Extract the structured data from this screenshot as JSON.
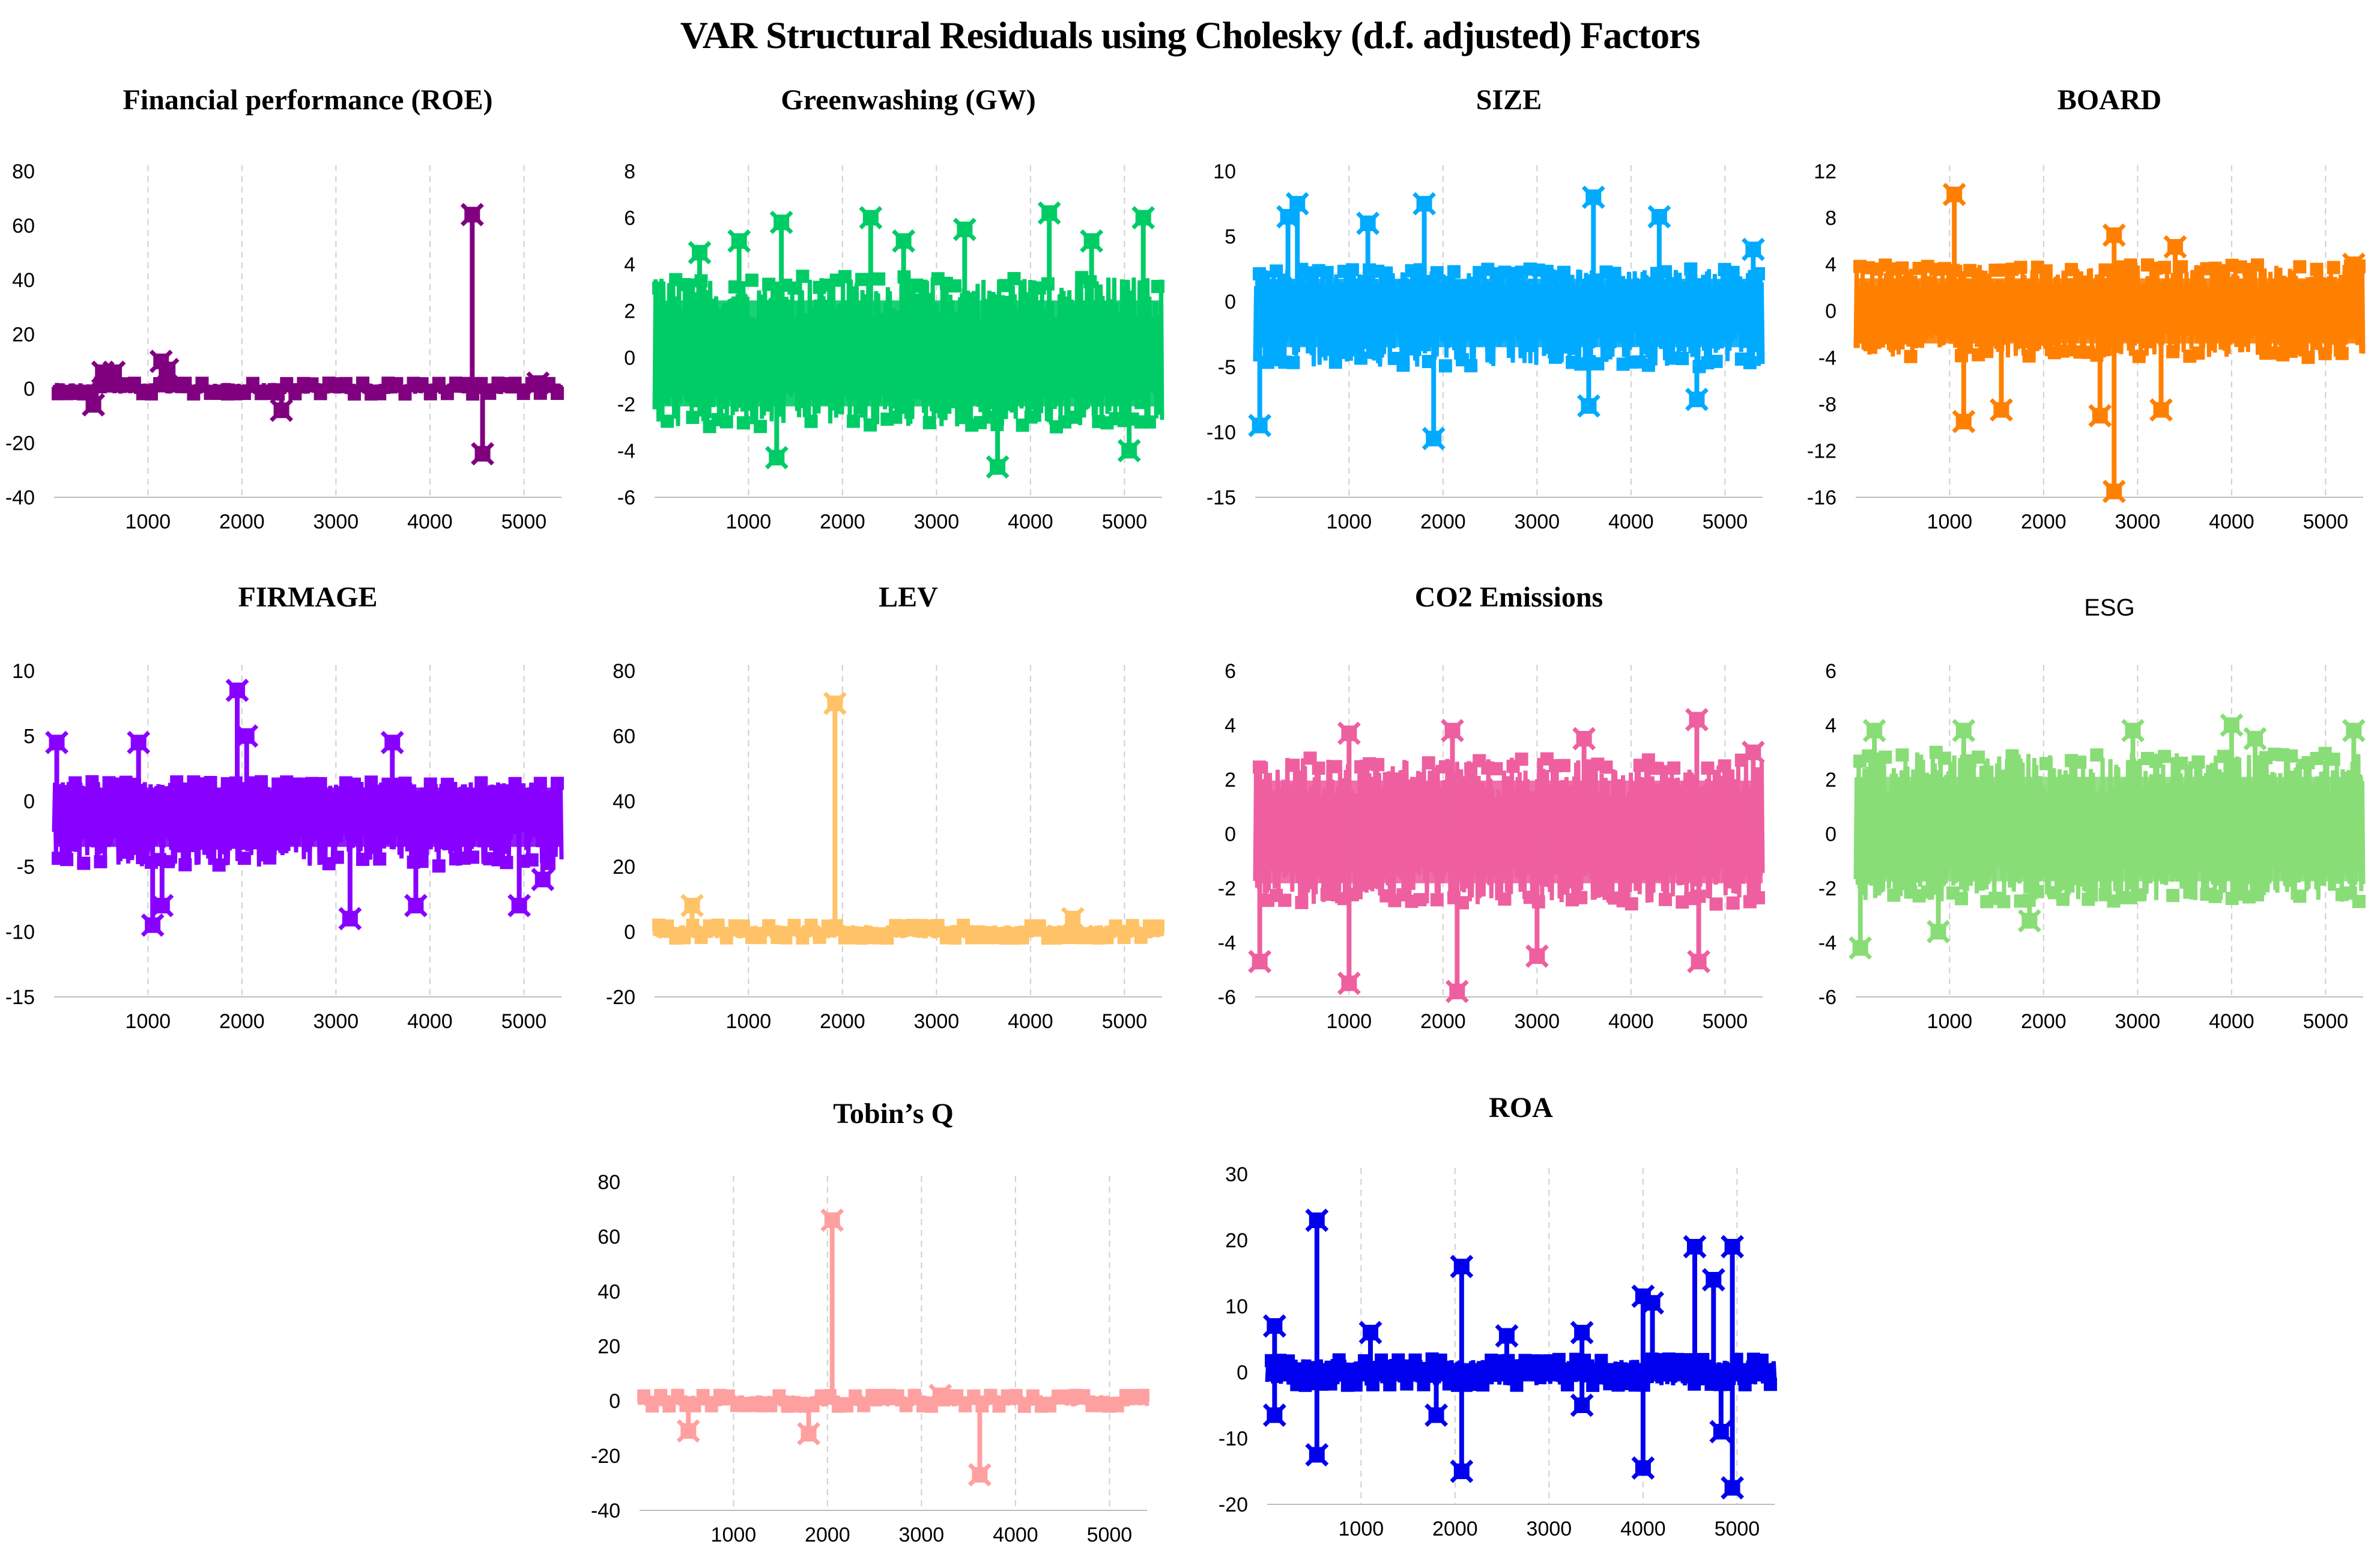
{
  "figure": {
    "title": "VAR Structural Residuals using Cholesky (d.f. adjusted) Factors"
  },
  "chart_data": [
    {
      "type": "line",
      "title": "Financial performance (ROE)",
      "color": "#800080",
      "xlim": [
        1,
        5400
      ],
      "xticks": [
        1000,
        2000,
        3000,
        4000,
        5000
      ],
      "ylim": [
        -40,
        80
      ],
      "yticks": [
        -40,
        -20,
        0,
        20,
        40,
        60,
        80
      ],
      "band": [
        -2,
        2
      ],
      "spikes": [
        {
          "x": 420,
          "y": -6
        },
        {
          "x": 520,
          "y": 6
        },
        {
          "x": 640,
          "y": 6
        },
        {
          "x": 1140,
          "y": 10
        },
        {
          "x": 1210,
          "y": 7
        },
        {
          "x": 2420,
          "y": -8
        },
        {
          "x": 4450,
          "y": 64
        },
        {
          "x": 4560,
          "y": -24
        },
        {
          "x": 5150,
          "y": 2
        }
      ]
    },
    {
      "type": "line",
      "title": "Greenwashing (GW)",
      "color": "#00CC66",
      "xlim": [
        1,
        5400
      ],
      "xticks": [
        1000,
        2000,
        3000,
        4000,
        5000
      ],
      "ylim": [
        -6,
        8
      ],
      "yticks": [
        -6,
        -4,
        -2,
        0,
        2,
        4,
        6,
        8
      ],
      "band": [
        -3,
        3.5
      ],
      "spikes": [
        {
          "x": 480,
          "y": 4.5
        },
        {
          "x": 900,
          "y": 5
        },
        {
          "x": 1350,
          "y": 5.8
        },
        {
          "x": 1300,
          "y": -4.3
        },
        {
          "x": 2300,
          "y": 6
        },
        {
          "x": 2650,
          "y": 5
        },
        {
          "x": 3300,
          "y": 5.5
        },
        {
          "x": 3650,
          "y": -4.7
        },
        {
          "x": 4200,
          "y": 6.2
        },
        {
          "x": 4650,
          "y": 5
        },
        {
          "x": 5200,
          "y": 6
        },
        {
          "x": 5050,
          "y": -4
        }
      ]
    },
    {
      "type": "line",
      "title": "SIZE",
      "color": "#00AAFF",
      "xlim": [
        1,
        5400
      ],
      "xticks": [
        1000,
        2000,
        3000,
        4000,
        5000
      ],
      "ylim": [
        -15,
        10
      ],
      "yticks": [
        -15,
        -10,
        -5,
        0,
        5,
        10
      ],
      "band": [
        -5,
        2.5
      ],
      "spikes": [
        {
          "x": 50,
          "y": -9.5
        },
        {
          "x": 350,
          "y": 6.5
        },
        {
          "x": 450,
          "y": 7.5
        },
        {
          "x": 1200,
          "y": 6
        },
        {
          "x": 1800,
          "y": 7.5
        },
        {
          "x": 1900,
          "y": -10.5
        },
        {
          "x": 3550,
          "y": -8
        },
        {
          "x": 3600,
          "y": 8
        },
        {
          "x": 4300,
          "y": 6.5
        },
        {
          "x": 4700,
          "y": -7.5
        },
        {
          "x": 5300,
          "y": 4
        }
      ]
    },
    {
      "type": "line",
      "title": "BOARD",
      "color": "#FF8000",
      "xlim": [
        1,
        5400
      ],
      "xticks": [
        1000,
        2000,
        3000,
        4000,
        5000
      ],
      "ylim": [
        -16,
        12
      ],
      "yticks": [
        -16,
        -12,
        -8,
        -4,
        0,
        4,
        8,
        12
      ],
      "band": [
        -4,
        4
      ],
      "spikes": [
        {
          "x": 1050,
          "y": 10
        },
        {
          "x": 1150,
          "y": -9.5
        },
        {
          "x": 1550,
          "y": -8.5
        },
        {
          "x": 2600,
          "y": -9
        },
        {
          "x": 2750,
          "y": 6.5
        },
        {
          "x": 2750,
          "y": -15.5
        },
        {
          "x": 3250,
          "y": -8.5
        },
        {
          "x": 3400,
          "y": 5.5
        },
        {
          "x": 5300,
          "y": 4
        }
      ]
    },
    {
      "type": "line",
      "title": "FIRMAGE",
      "color": "#8800FF",
      "xlim": [
        1,
        5400
      ],
      "xticks": [
        1000,
        2000,
        3000,
        4000,
        5000
      ],
      "ylim": [
        -15,
        10
      ],
      "yticks": [
        -15,
        -10,
        -5,
        0,
        5,
        10
      ],
      "band": [
        -5,
        1.5
      ],
      "spikes": [
        {
          "x": 30,
          "y": 4.5
        },
        {
          "x": 900,
          "y": 4.5
        },
        {
          "x": 1050,
          "y": -9.5
        },
        {
          "x": 1150,
          "y": -8
        },
        {
          "x": 1950,
          "y": 8.5
        },
        {
          "x": 2050,
          "y": 5
        },
        {
          "x": 3150,
          "y": -9
        },
        {
          "x": 3600,
          "y": 4.5
        },
        {
          "x": 3850,
          "y": -8
        },
        {
          "x": 4950,
          "y": -8
        },
        {
          "x": 5200,
          "y": -6
        }
      ]
    },
    {
      "type": "line",
      "title": "LEV",
      "color": "#FFC266",
      "xlim": [
        1,
        5400
      ],
      "xticks": [
        1000,
        2000,
        3000,
        4000,
        5000
      ],
      "ylim": [
        -20,
        80
      ],
      "yticks": [
        -20,
        0,
        20,
        40,
        60,
        80
      ],
      "band": [
        -2,
        2
      ],
      "spikes": [
        {
          "x": 400,
          "y": 8
        },
        {
          "x": 1920,
          "y": 70
        },
        {
          "x": 4450,
          "y": 4
        }
      ]
    },
    {
      "type": "line",
      "title": "CO2 Emissions",
      "color": "#EE5FA0",
      "xlim": [
        1,
        5400
      ],
      "xticks": [
        1000,
        2000,
        3000,
        4000,
        5000
      ],
      "ylim": [
        -6,
        6
      ],
      "yticks": [
        -6,
        -4,
        -2,
        0,
        2,
        4,
        6
      ],
      "band": [
        -2.6,
        2.8
      ],
      "spikes": [
        {
          "x": 50,
          "y": -4.7
        },
        {
          "x": 1000,
          "y": 3.7
        },
        {
          "x": 1000,
          "y": -5.5
        },
        {
          "x": 2100,
          "y": 3.8
        },
        {
          "x": 2150,
          "y": -5.8
        },
        {
          "x": 3000,
          "y": -4.5
        },
        {
          "x": 3500,
          "y": 3.5
        },
        {
          "x": 4700,
          "y": 4.2
        },
        {
          "x": 4720,
          "y": -4.7
        },
        {
          "x": 5300,
          "y": 3
        }
      ]
    },
    {
      "type": "line",
      "title": "ESG",
      "color": "#88DD77",
      "xlim": [
        1,
        5400
      ],
      "xticks": [
        1000,
        2000,
        3000,
        4000,
        5000
      ],
      "ylim": [
        -6,
        6
      ],
      "yticks": [
        -6,
        -4,
        -2,
        0,
        2,
        4,
        6
      ],
      "band": [
        -2.5,
        3
      ],
      "spikes": [
        {
          "x": 50,
          "y": -4.2
        },
        {
          "x": 200,
          "y": 3.8
        },
        {
          "x": 880,
          "y": -3.6
        },
        {
          "x": 1150,
          "y": 3.8
        },
        {
          "x": 1850,
          "y": -3.2
        },
        {
          "x": 2950,
          "y": 3.8
        },
        {
          "x": 4000,
          "y": 4
        },
        {
          "x": 4250,
          "y": 3.5
        },
        {
          "x": 5300,
          "y": 3.8
        }
      ]
    },
    {
      "type": "line",
      "title": "Tobin’s Q",
      "color": "#FFA0A0",
      "xlim": [
        1,
        5400
      ],
      "xticks": [
        1000,
        2000,
        3000,
        4000,
        5000
      ],
      "ylim": [
        -40,
        80
      ],
      "yticks": [
        -40,
        -20,
        0,
        20,
        40,
        60,
        80
      ],
      "band": [
        -2,
        2
      ],
      "spikes": [
        {
          "x": 520,
          "y": -11
        },
        {
          "x": 1800,
          "y": -12
        },
        {
          "x": 2050,
          "y": 66
        },
        {
          "x": 3620,
          "y": -27
        },
        {
          "x": 3200,
          "y": 2
        }
      ]
    },
    {
      "type": "line",
      "title": "ROA",
      "color": "#0000EE",
      "xlim": [
        1,
        5400
      ],
      "xticks": [
        1000,
        2000,
        3000,
        4000,
        5000
      ],
      "ylim": [
        -20,
        30
      ],
      "yticks": [
        -20,
        -10,
        0,
        10,
        20,
        30
      ],
      "band": [
        -2,
        2
      ],
      "spikes": [
        {
          "x": 80,
          "y": 7
        },
        {
          "x": 80,
          "y": -6.5
        },
        {
          "x": 530,
          "y": 23
        },
        {
          "x": 530,
          "y": -12.5
        },
        {
          "x": 1100,
          "y": 6
        },
        {
          "x": 1800,
          "y": -6.5
        },
        {
          "x": 2070,
          "y": 16
        },
        {
          "x": 2070,
          "y": -15
        },
        {
          "x": 2550,
          "y": 5.5
        },
        {
          "x": 3350,
          "y": 6
        },
        {
          "x": 3350,
          "y": -5
        },
        {
          "x": 4000,
          "y": 11.5
        },
        {
          "x": 4000,
          "y": -14.5
        },
        {
          "x": 4100,
          "y": 10.5
        },
        {
          "x": 4550,
          "y": 19
        },
        {
          "x": 4750,
          "y": 14
        },
        {
          "x": 4830,
          "y": -9
        },
        {
          "x": 4950,
          "y": 19
        },
        {
          "x": 4950,
          "y": -17.5
        }
      ]
    }
  ]
}
